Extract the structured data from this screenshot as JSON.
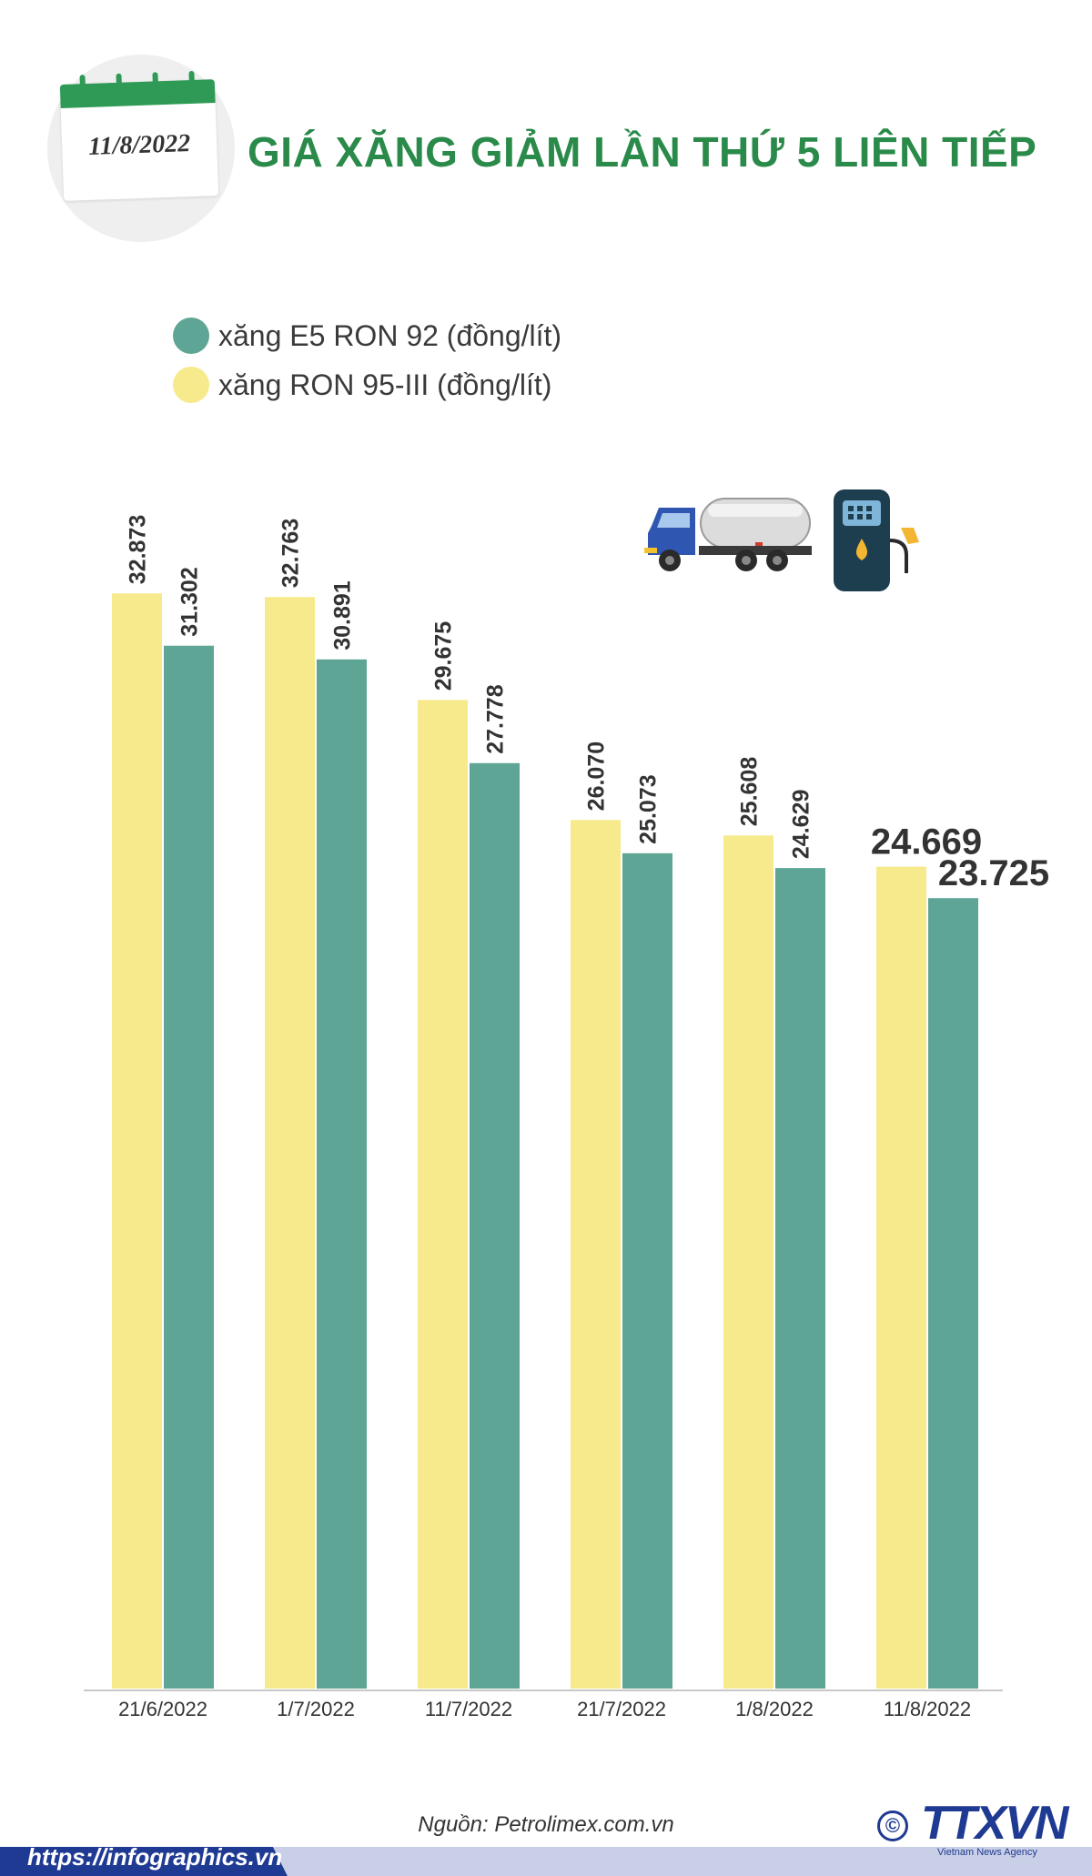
{
  "header": {
    "date": "11/8/2022",
    "title": "GIÁ XĂNG GIẢM LẦN THỨ 5 LIÊN TIẾP"
  },
  "colors": {
    "e5": "#5fa596",
    "ron95": "#f6ea8c",
    "title": "#2a8a4a",
    "calendar": "#2f9a55",
    "footer": "#1f3a93"
  },
  "chart_data": {
    "type": "bar",
    "categories": [
      "21/6/2022",
      "1/7/2022",
      "11/7/2022",
      "21/7/2022",
      "1/8/2022",
      "11/8/2022"
    ],
    "series": [
      {
        "name": "xăng RON 95-III (đồng/lít)",
        "values": [
          32873,
          32763,
          29675,
          26070,
          25608,
          24669
        ],
        "labels": [
          "32.873",
          "32.763",
          "29.675",
          "26.070",
          "25.608",
          "24.669"
        ]
      },
      {
        "name": "xăng E5 RON 92 (đồng/lít)",
        "values": [
          31302,
          30891,
          27778,
          25073,
          24629,
          23725
        ],
        "labels": [
          "31.302",
          "30.891",
          "27.778",
          "25.073",
          "24.629",
          "23.725"
        ]
      }
    ],
    "ylim": [
      0,
      35500
    ],
    "grid": false,
    "legend_position": "top-left"
  },
  "legend": [
    {
      "label": "xăng E5 RON 92 (đồng/lít)",
      "color": "#5fa596"
    },
    {
      "label": "xăng RON 95-III (đồng/lít)",
      "color": "#f6ea8c"
    }
  ],
  "icons": [
    "truck-icon",
    "fuel-pump-icon",
    "calendar-icon"
  ],
  "footer": {
    "source_label": "Nguồn: ",
    "source": "Petrolimex.com.vn",
    "url": "https://infographics.vn",
    "logo": "TTXVN",
    "logo_sub": "Vietnam News Agency",
    "copyright": "©"
  }
}
